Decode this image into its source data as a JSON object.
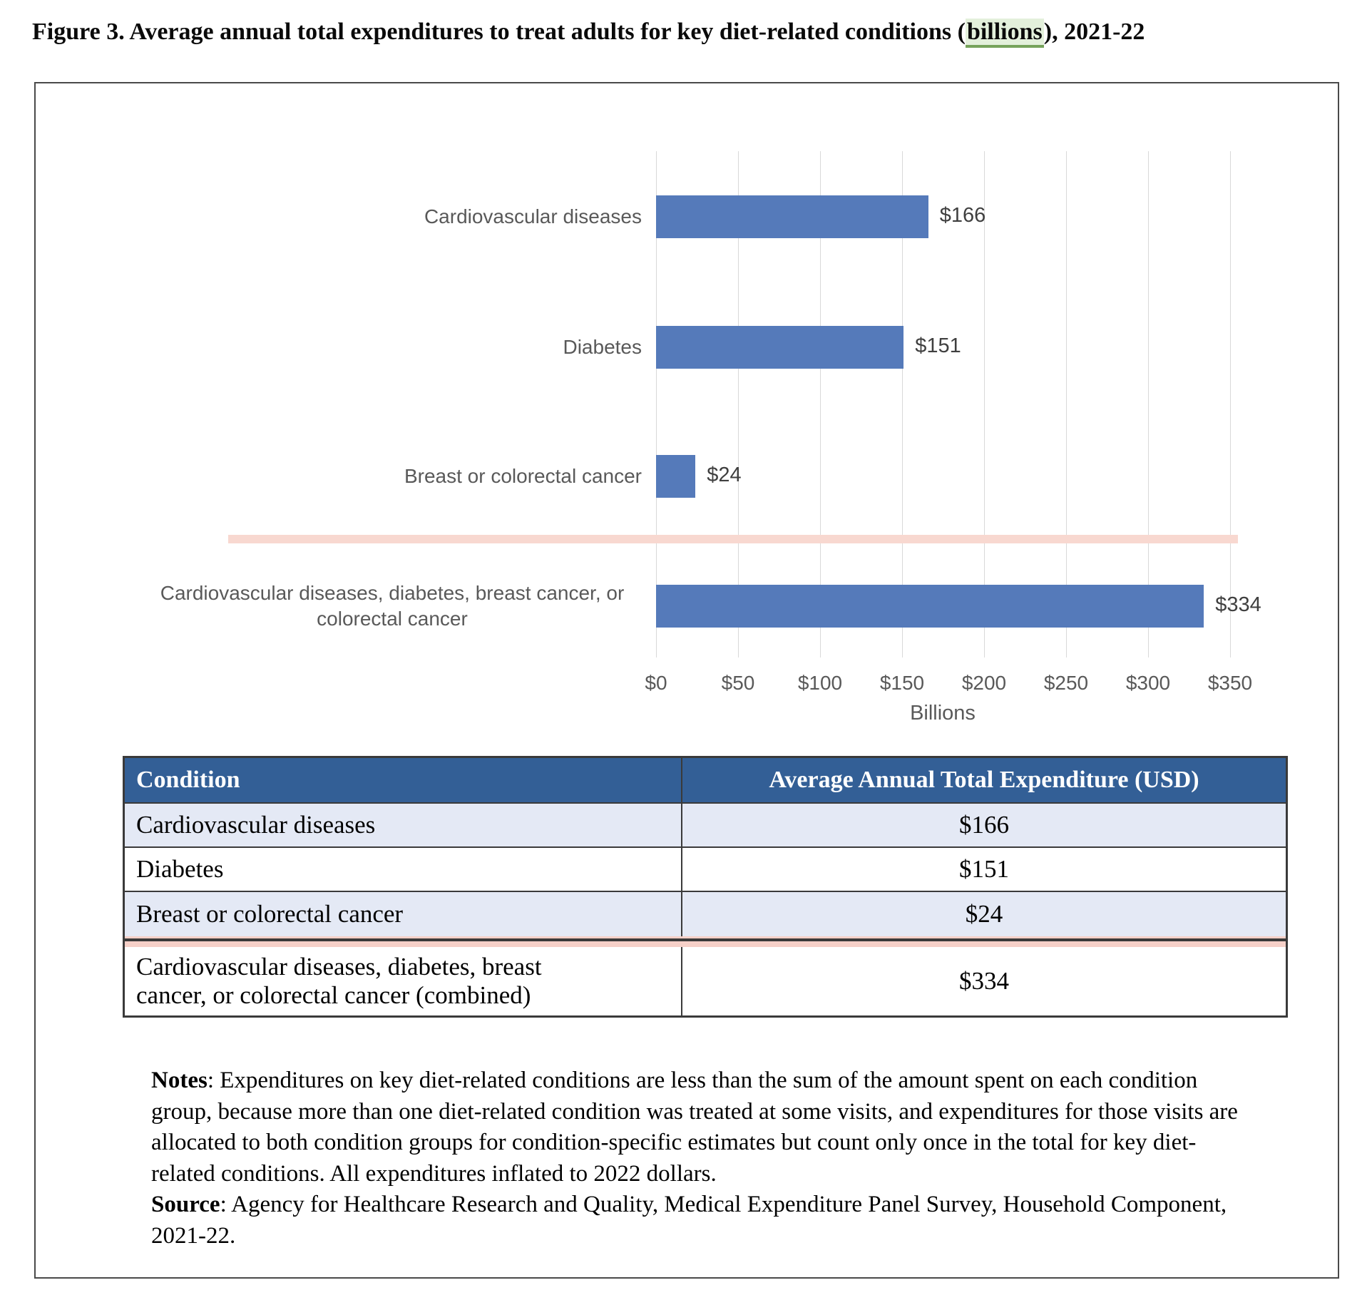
{
  "title": {
    "prefix": "Figure 3. Average annual total expenditures to treat adults for key diet-related conditions (",
    "highlight": "billions",
    "suffix": "), 2021-22"
  },
  "chart_data": {
    "type": "bar",
    "orientation": "horizontal",
    "title": "",
    "categories": [
      "Cardiovascular diseases",
      "Diabetes",
      "Breast or colorectal cancer",
      "Cardiovascular diseases, diabetes, breast cancer, or colorectal cancer"
    ],
    "values": [
      166,
      151,
      24,
      334
    ],
    "value_labels": [
      "$166",
      "$151",
      "$24",
      "$334"
    ],
    "xlabel": "Billions",
    "xlim": [
      0,
      350
    ],
    "xticks": [
      0,
      50,
      100,
      150,
      200,
      250,
      300,
      350
    ],
    "xtick_labels": [
      "$0",
      "$50",
      "$100",
      "$150",
      "$200",
      "$250",
      "$300",
      "$350"
    ],
    "grid": true,
    "legend": false,
    "bar_color": "#557ABA",
    "gridline_color": "#D9D9D9",
    "separator_line_color": "#F8D8D0"
  },
  "table": {
    "headers": [
      "Condition",
      "Average Annual Total Expenditure (USD)"
    ],
    "rows": [
      {
        "condition": "Cardiovascular diseases",
        "value": "$166"
      },
      {
        "condition": "Diabetes",
        "value": "$151"
      },
      {
        "condition": "Breast or colorectal cancer",
        "value": "$24"
      },
      {
        "condition": "Cardiovascular diseases, diabetes, breast cancer, or colorectal cancer (combined)",
        "value": "$334"
      }
    ],
    "header_bg": "#335F96",
    "alt_row_bg": "#E4E9F5",
    "divider_band_color": "#F6D0C8",
    "divider_line_color": "#3A3A3A"
  },
  "notes": {
    "label": "Notes",
    "text": ": Expenditures on key diet-related conditions are less than the sum of the amount spent on each condition group, because more than one diet-related condition was treated at some visits, and expenditures for those visits are allocated to both condition groups for condition-specific estimates but count only once in the total for key diet-related conditions. All expenditures inflated to 2022 dollars."
  },
  "source": {
    "label": "Source",
    "text": ": Agency for Healthcare Research and Quality, Medical Expenditure Panel Survey, Household Component, 2021-22."
  },
  "highlight_colors": {
    "background": "#E3F0DB",
    "underline": "#76A35B"
  }
}
